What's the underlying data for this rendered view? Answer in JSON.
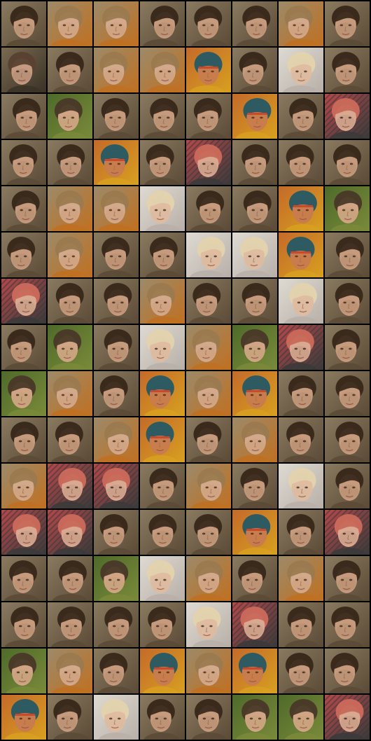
{
  "grid": {
    "columns": 8,
    "rows": 16,
    "background_color": "#000000",
    "tiles": [
      [
        "dark-hair",
        "blond",
        "blond",
        "dark-hair",
        "dark-hair",
        "dark-hair",
        "blond",
        "dark-hair"
      ],
      [
        "brown",
        "dark-hair",
        "blond",
        "blond",
        "teal-cap",
        "dark-hair",
        "white-blond",
        "dark-hair"
      ],
      [
        "dark-hair",
        "green-bg",
        "dark-hair",
        "dark-hair",
        "dark-hair",
        "teal-cap",
        "dark-hair",
        "red-pattern"
      ],
      [
        "dark-hair",
        "dark-hair",
        "teal-cap",
        "dark-hair",
        "red-pattern",
        "dark-hair",
        "dark-hair",
        "dark-hair"
      ],
      [
        "dark-hair",
        "blond",
        "blond",
        "white-blond",
        "dark-hair",
        "dark-hair",
        "teal-cap",
        "green-bg"
      ],
      [
        "dark-hair",
        "blond",
        "dark-hair",
        "dark-hair",
        "white-blond",
        "white-blond",
        "teal-cap",
        "dark-hair"
      ],
      [
        "red-pattern",
        "dark-hair",
        "dark-hair",
        "blond",
        "dark-hair",
        "dark-hair",
        "white-blond",
        "dark-hair"
      ],
      [
        "dark-hair",
        "green-bg",
        "dark-hair",
        "white-blond",
        "blond",
        "green-bg",
        "red-pattern",
        "dark-hair"
      ],
      [
        "green-bg",
        "blond",
        "dark-hair",
        "teal-cap",
        "blond",
        "teal-cap",
        "dark-hair",
        "dark-hair"
      ],
      [
        "dark-hair",
        "dark-hair",
        "blond",
        "teal-cap",
        "dark-hair",
        "blond",
        "dark-hair",
        "dark-hair"
      ],
      [
        "blond",
        "red-pattern",
        "red-pattern",
        "dark-hair",
        "blond",
        "dark-hair",
        "white-blond",
        "dark-hair"
      ],
      [
        "red-pattern",
        "red-pattern",
        "dark-hair",
        "dark-hair",
        "dark-hair",
        "teal-cap",
        "dark-hair",
        "red-pattern"
      ],
      [
        "dark-hair",
        "dark-hair",
        "green-bg",
        "white-blond",
        "blond",
        "dark-hair",
        "blond",
        "dark-hair"
      ],
      [
        "dark-hair",
        "dark-hair",
        "dark-hair",
        "dark-hair",
        "white-blond",
        "red-pattern",
        "dark-hair",
        "dark-hair"
      ],
      [
        "green-bg",
        "blond",
        "dark-hair",
        "teal-cap",
        "blond",
        "teal-cap",
        "dark-hair",
        "dark-hair"
      ],
      [
        "teal-cap",
        "dark-hair",
        "white-blond",
        "dark-hair",
        "dark-hair",
        "green-bg",
        "green-bg",
        "red-pattern"
      ]
    ]
  },
  "palettes": {
    "dark-hair": {
      "bg": "#8a7a60",
      "hair": "#3a2a1c",
      "skin": "#c69a7c",
      "accent": "#5b4a36"
    },
    "blond": {
      "bg": "#9c8a6a",
      "hair": "#9a7a4e",
      "skin": "#d2a98a",
      "accent": "#c07020"
    },
    "brown": {
      "bg": "#7a6a50",
      "hair": "#5a4232",
      "skin": "#c49a80",
      "accent": "#3a3226"
    },
    "white-blond": {
      "bg": "#dedad2",
      "hair": "#e2d2ae",
      "skin": "#e0bca0",
      "accent": "#b8b0a8"
    },
    "teal-cap": {
      "bg": "#c46a2a",
      "hair": "#2e5a62",
      "skin": "#c87a50",
      "accent": "#d8a020"
    },
    "red-pattern": {
      "bg": "#b8484a",
      "hair": "#c8685a",
      "skin": "#d8a890",
      "accent": "#3a3a3a"
    },
    "green-bg": {
      "bg": "#4e6a2a",
      "hair": "#4a3a28",
      "skin": "#d0a484",
      "accent": "#7a8a3a"
    }
  }
}
